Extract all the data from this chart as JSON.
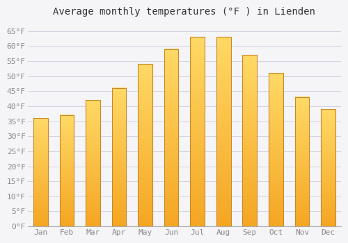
{
  "title": "Average monthly temperatures (°F ) in Lienden",
  "months": [
    "Jan",
    "Feb",
    "Mar",
    "Apr",
    "May",
    "Jun",
    "Jul",
    "Aug",
    "Sep",
    "Oct",
    "Nov",
    "Dec"
  ],
  "values": [
    36,
    37,
    42,
    46,
    54,
    59,
    63,
    63,
    57,
    51,
    43,
    39
  ],
  "bar_color_top": "#FFD966",
  "bar_color_bottom": "#F5A623",
  "bar_edge_color": "#C8882A",
  "ylim": [
    0,
    68
  ],
  "yticks": [
    0,
    5,
    10,
    15,
    20,
    25,
    30,
    35,
    40,
    45,
    50,
    55,
    60,
    65
  ],
  "ytick_labels": [
    "0°F",
    "5°F",
    "10°F",
    "15°F",
    "20°F",
    "25°F",
    "30°F",
    "35°F",
    "40°F",
    "45°F",
    "50°F",
    "55°F",
    "60°F",
    "65°F"
  ],
  "grid_color": "#ccccdd",
  "bg_color": "#f5f5f8",
  "plot_bg_color": "#f5f5f8",
  "title_fontsize": 10,
  "tick_fontsize": 8,
  "bar_width": 0.55,
  "tick_color": "#888888",
  "title_color": "#333333"
}
